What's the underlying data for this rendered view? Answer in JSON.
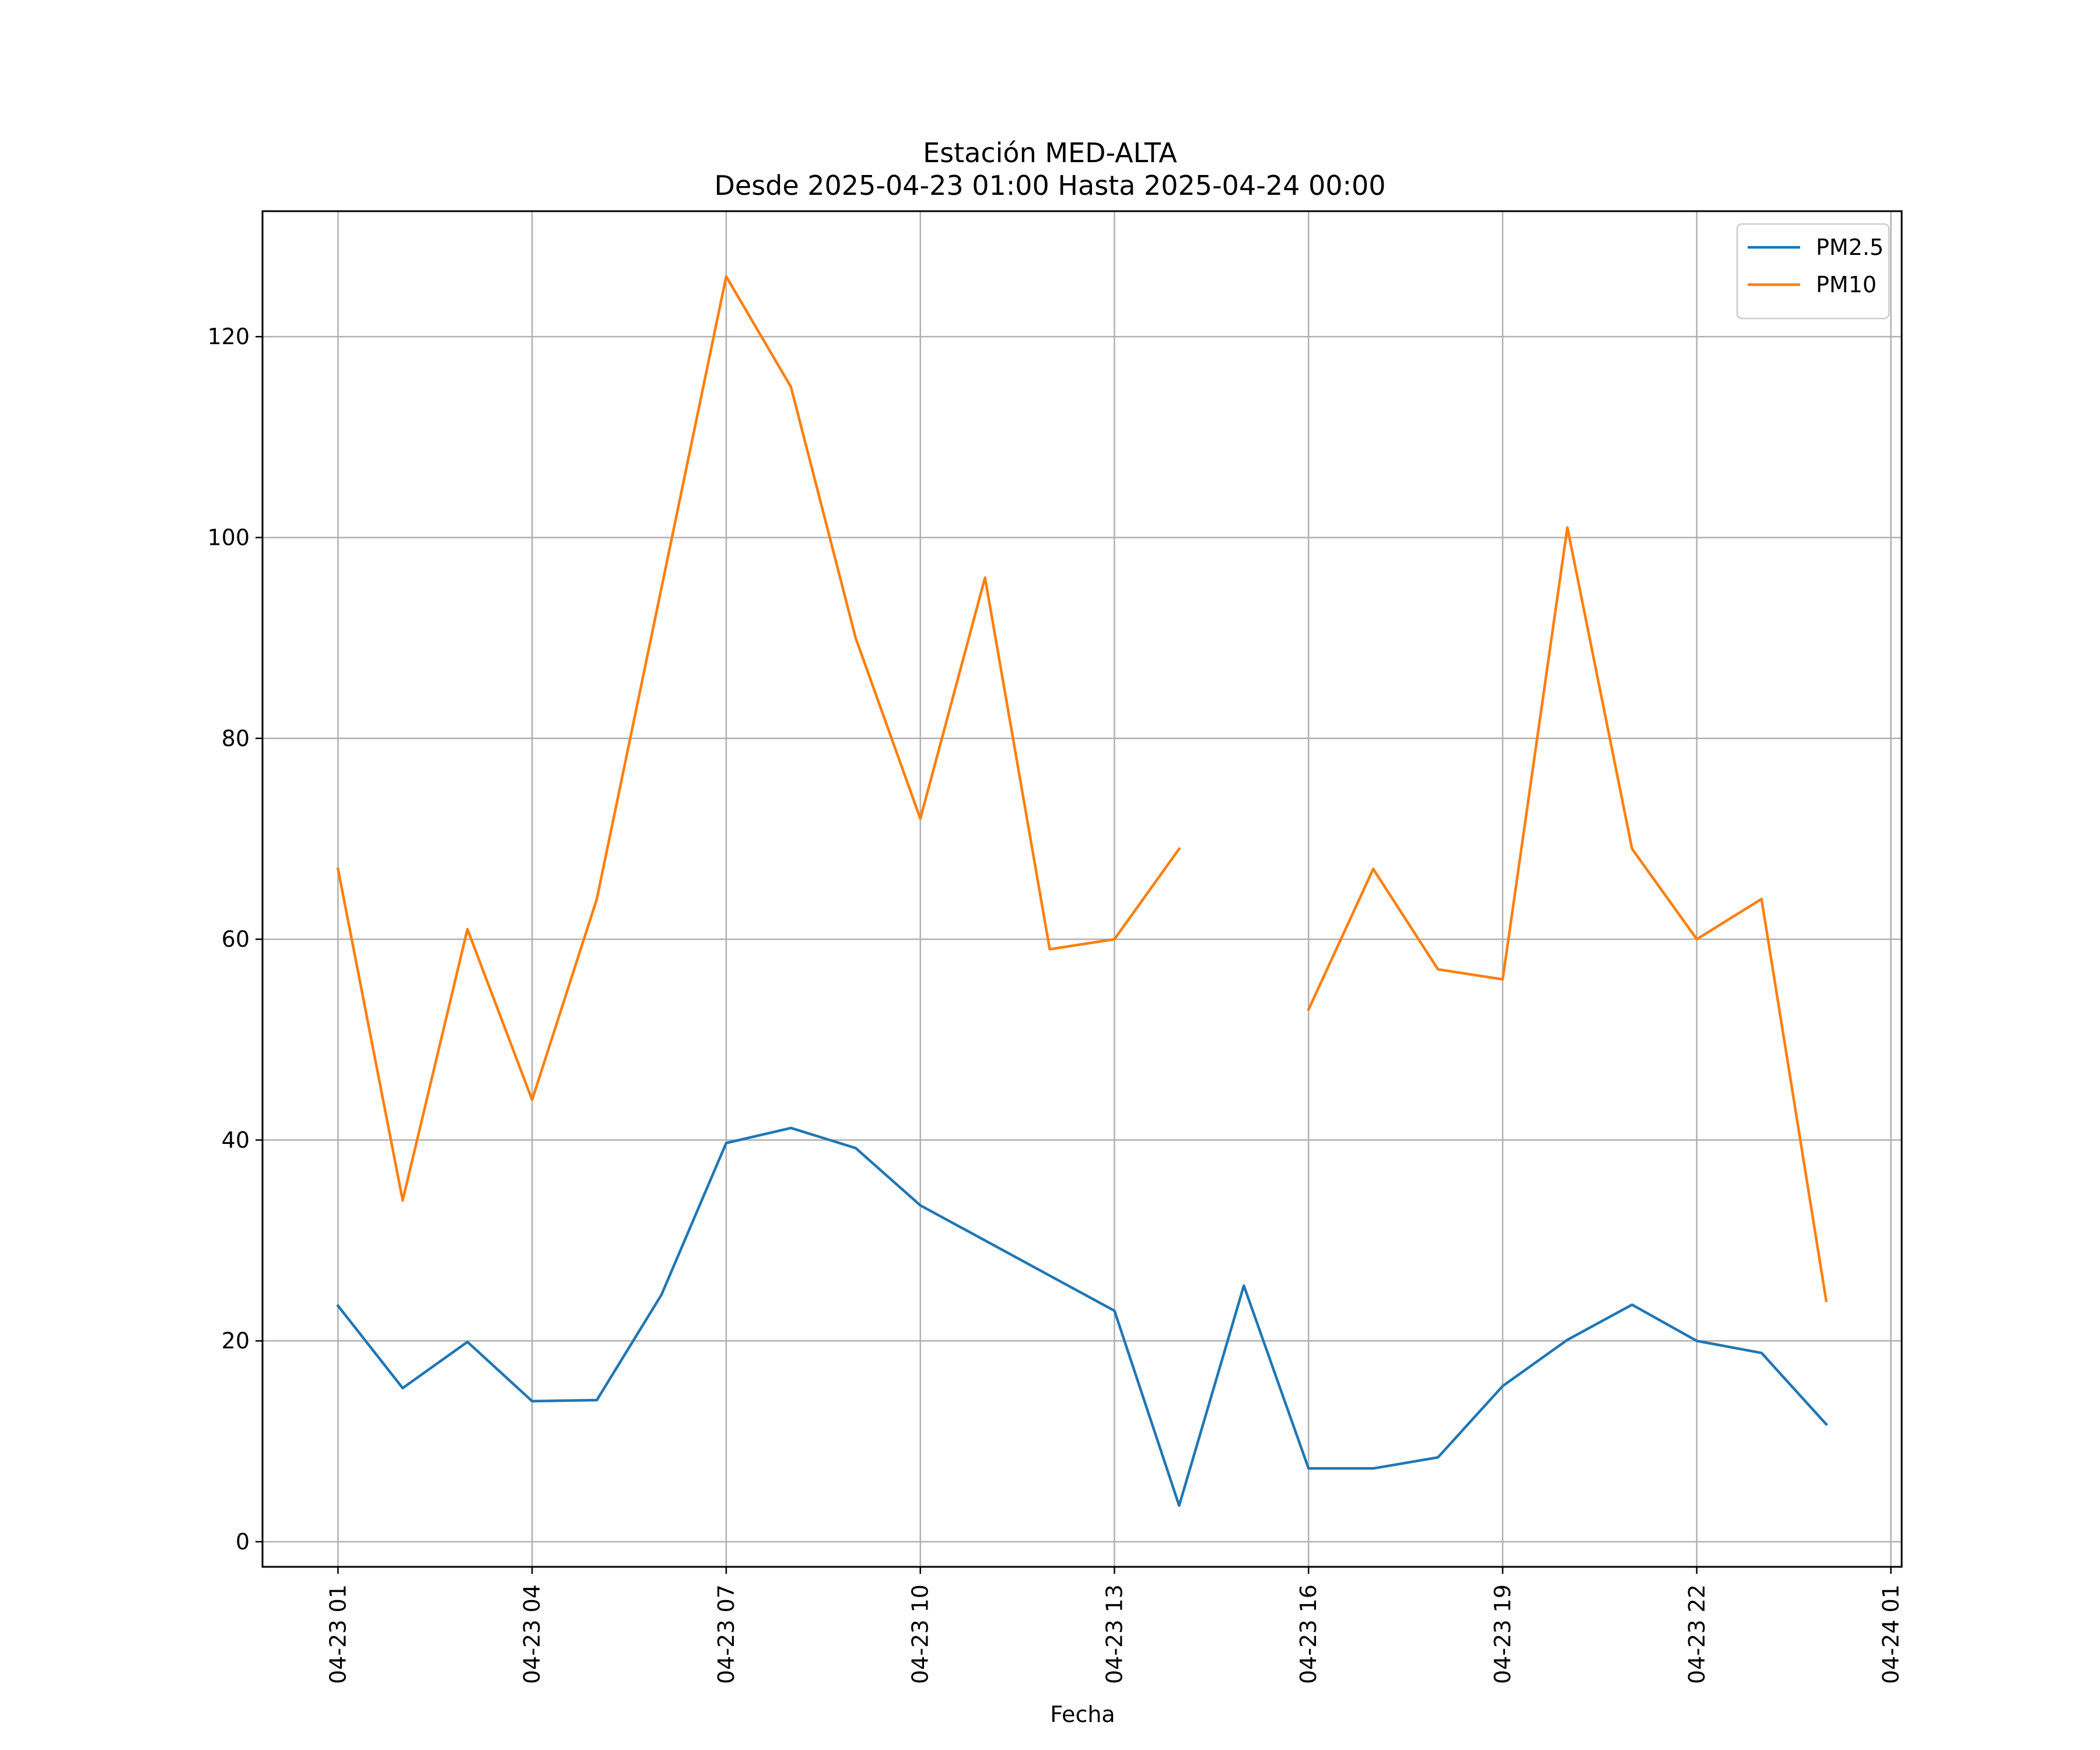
{
  "chart_data": {
    "type": "line",
    "title": "Estación MED-ALTA",
    "subtitle": "Desde 2025-04-23 01:00 Hasta 2025-04-24 00:00",
    "xlabel": "Fecha",
    "ylabel": "",
    "x": [
      "2025-04-23 01:00",
      "2025-04-23 02:00",
      "2025-04-23 03:00",
      "2025-04-23 04:00",
      "2025-04-23 05:00",
      "2025-04-23 06:00",
      "2025-04-23 07:00",
      "2025-04-23 08:00",
      "2025-04-23 09:00",
      "2025-04-23 10:00",
      "2025-04-23 11:00",
      "2025-04-23 12:00",
      "2025-04-23 13:00",
      "2025-04-23 14:00",
      "2025-04-23 15:00",
      "2025-04-23 16:00",
      "2025-04-23 17:00",
      "2025-04-23 18:00",
      "2025-04-23 19:00",
      "2025-04-23 20:00",
      "2025-04-23 21:00",
      "2025-04-23 22:00",
      "2025-04-23 23:00",
      "2025-04-24 00:00"
    ],
    "series": [
      {
        "name": "PM2.5",
        "color": "#1f77b4",
        "values": [
          23.5,
          15.3,
          19.9,
          14.0,
          14.1,
          24.6,
          39.7,
          41.2,
          39.2,
          33.5,
          30.0,
          26.5,
          23.0,
          3.6,
          25.5,
          7.3,
          7.3,
          8.4,
          15.5,
          20.1,
          23.6,
          20.0,
          18.8,
          11.7
        ]
      },
      {
        "name": "PM10",
        "color": "#ff7f0e",
        "values": [
          67,
          34,
          61,
          44,
          64,
          95,
          126,
          115,
          90,
          72,
          96,
          59,
          60,
          69,
          null,
          53,
          67,
          57,
          56,
          101,
          69,
          60,
          64,
          24
        ]
      }
    ],
    "xticks": [
      "04-23 01",
      "04-23 04",
      "04-23 07",
      "04-23 10",
      "04-23 13",
      "04-23 16",
      "04-23 19",
      "04-23 22",
      "04-24 01"
    ],
    "yticks": [
      0,
      20,
      40,
      60,
      80,
      100,
      120
    ],
    "xlim": [
      "2025-04-22 23:50",
      "2025-04-24 01:10"
    ],
    "ylim": [
      -2.5,
      132.5
    ],
    "grid": true,
    "legend": "top-right"
  }
}
